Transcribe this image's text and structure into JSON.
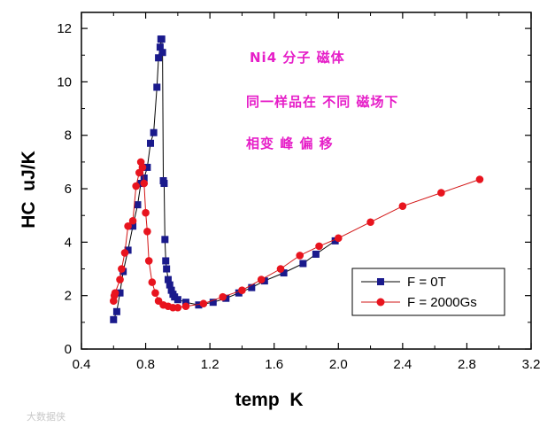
{
  "chart_data": {
    "type": "line",
    "title": "",
    "xlabel": "temp  K",
    "ylabel": "HC  uJ/K",
    "xlim": [
      0.4,
      3.2
    ],
    "ylim": [
      0,
      12.6
    ],
    "x_ticks": [
      0.4,
      0.8,
      1.2,
      1.6,
      2.0,
      2.4,
      2.8,
      3.2
    ],
    "x_tick_labels": [
      "0.4",
      "0.8",
      "1.2",
      "1.6",
      "2.0",
      "2.4",
      "2.8",
      "3.2"
    ],
    "y_ticks": [
      0,
      2,
      4,
      6,
      8,
      10,
      12
    ],
    "y_tick_labels": [
      "0",
      "2",
      "4",
      "6",
      "8",
      "10",
      "12"
    ],
    "grid": false,
    "legend_position": "bottom-right",
    "annotations": [
      "Ni4 分子 磁体",
      "同一样品在 不同 磁场下",
      "相变 峰 偏 移"
    ],
    "series": [
      {
        "name": "F = 0T",
        "color": "#1a1a8c",
        "marker": "square",
        "x": [
          0.6,
          0.62,
          0.64,
          0.66,
          0.69,
          0.72,
          0.75,
          0.77,
          0.79,
          0.81,
          0.83,
          0.85,
          0.87,
          0.88,
          0.89,
          0.895,
          0.9,
          0.905,
          0.91,
          0.915,
          0.92,
          0.925,
          0.93,
          0.94,
          0.95,
          0.96,
          0.97,
          0.98,
          1.0,
          1.05,
          1.13,
          1.22,
          1.3,
          1.38,
          1.46,
          1.54,
          1.66,
          1.78,
          1.86,
          1.98
        ],
        "y": [
          1.1,
          1.4,
          2.1,
          2.9,
          3.7,
          4.6,
          5.4,
          6.2,
          6.4,
          6.8,
          7.7,
          8.1,
          9.8,
          10.9,
          11.3,
          11.6,
          11.6,
          11.1,
          6.3,
          6.2,
          4.1,
          3.3,
          3.0,
          2.6,
          2.4,
          2.2,
          2.05,
          1.95,
          1.85,
          1.75,
          1.65,
          1.75,
          1.9,
          2.1,
          2.3,
          2.55,
          2.85,
          3.2,
          3.55,
          4.05
        ]
      },
      {
        "name": "F = 2000Gs",
        "color": "#e8141e",
        "marker": "circle",
        "x": [
          0.6,
          0.605,
          0.61,
          0.64,
          0.65,
          0.67,
          0.69,
          0.72,
          0.74,
          0.76,
          0.77,
          0.78,
          0.79,
          0.8,
          0.81,
          0.82,
          0.84,
          0.86,
          0.88,
          0.91,
          0.94,
          0.97,
          1.0,
          1.05,
          1.16,
          1.28,
          1.4,
          1.52,
          1.64,
          1.76,
          1.88,
          2.0,
          2.2,
          2.4,
          2.64,
          2.88
        ],
        "y": [
          1.8,
          2.0,
          2.1,
          2.6,
          3.0,
          3.6,
          4.6,
          4.8,
          6.1,
          6.6,
          7.0,
          6.8,
          6.2,
          5.1,
          4.4,
          3.3,
          2.5,
          2.1,
          1.8,
          1.65,
          1.6,
          1.55,
          1.55,
          1.6,
          1.7,
          1.95,
          2.2,
          2.6,
          3.0,
          3.5,
          3.85,
          4.15,
          4.75,
          5.35,
          5.85,
          6.35
        ]
      }
    ]
  },
  "watermark": "大数据侠"
}
